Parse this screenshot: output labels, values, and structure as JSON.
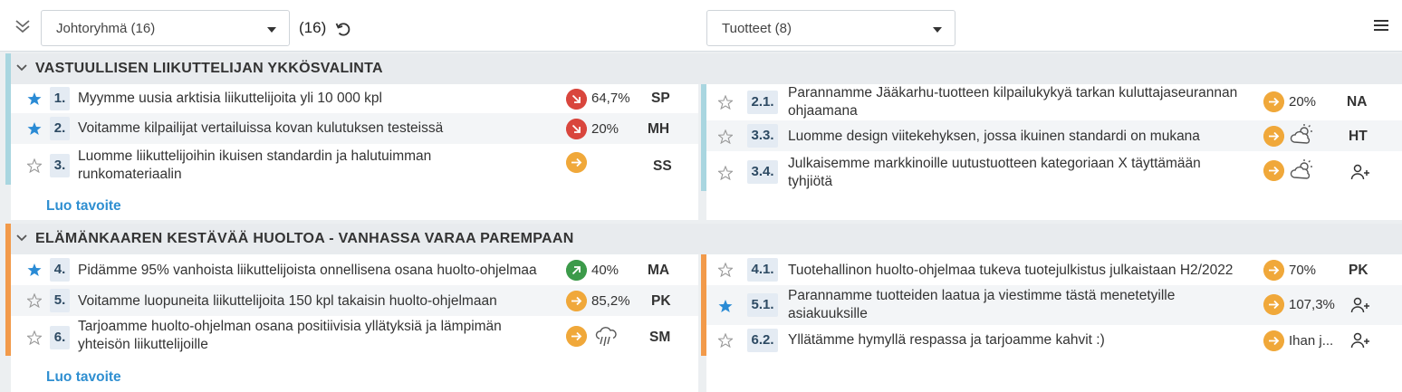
{
  "toolbar": {
    "left_dropdown": "Johtoryhmä (16)",
    "count": "(16)",
    "right_dropdown": "Tuotteet (8)"
  },
  "groups": [
    {
      "title": "VASTUULLISEN LIIKUTTELIJAN YKKÖSVALINTA",
      "color": "#a9d6e0",
      "add_goal": "Luo tavoite",
      "left_items": [
        {
          "num": "1.",
          "text_lines": [
            "Myymme uusia arktisia liikuttelijoita yli 10 000 kpl"
          ],
          "status": "down",
          "percent": "64,7%",
          "owner": "SP",
          "starred": true
        },
        {
          "num": "2.",
          "text_lines": [
            "Voitamme kilpailijat vertailuissa kovan kulutuksen testeissä"
          ],
          "status": "down",
          "percent": "20%",
          "owner": "MH",
          "starred": true
        },
        {
          "num": "3.",
          "text_lines": [
            "Luomme liikuttelijoihin ikuisen standardin ja halutuimman",
            "runkomateriaalin"
          ],
          "status": "right",
          "percent": "",
          "owner": "SS",
          "starred": false
        }
      ],
      "right_items": [
        {
          "num": "2.1.",
          "text_lines": [
            "Parannamme Jääkarhu-tuotteen kilpailukykyä tarkan kuluttajaseurannan",
            "ohjaamana"
          ],
          "status": "right",
          "percent": "20%",
          "owner": "NA",
          "starred": false
        },
        {
          "num": "3.3.",
          "text_lines": [
            "Luomme design viitekehyksen, jossa ikuinen standardi on mukana"
          ],
          "status": "right",
          "percent": "",
          "weather": "partly-cloudy-icon",
          "owner": "HT",
          "starred": false
        },
        {
          "num": "3.4.",
          "text_lines": [
            "Julkaisemme markkinoille uutustuotteen kategoriaan X täyttämään",
            "tyhjiötä"
          ],
          "status": "right",
          "percent": "",
          "weather": "partly-cloudy-icon",
          "owner": "",
          "owner_icon": "add-person-icon",
          "starred": false
        }
      ]
    },
    {
      "title": "ELÄMÄNKAAREN KESTÄVÄÄ HUOLTOA - VANHASSA VARAA PAREMPAAN",
      "color": "#f29a4a",
      "add_goal": "Luo tavoite",
      "left_items": [
        {
          "num": "4.",
          "text_lines": [
            "Pidämme 95% vanhoista liikuttelijoista onnellisena osana huolto-ohjelmaa"
          ],
          "status": "up",
          "percent": "40%",
          "owner": "MA",
          "starred": true
        },
        {
          "num": "5.",
          "text_lines": [
            "Voitamme luopuneita liikuttelijoita 150 kpl takaisin huolto-ohjelmaan"
          ],
          "status": "right",
          "percent": "85,2%",
          "owner": "PK",
          "starred": false
        },
        {
          "num": "6.",
          "text_lines": [
            "Tarjoamme huolto-ohjelman osana positiivisia yllätyksiä ja lämpimän",
            "yhteisön liikuttelijoille"
          ],
          "status": "right",
          "percent": "",
          "weather": "rain-icon",
          "owner": "SM",
          "starred": false
        }
      ],
      "right_items": [
        {
          "num": "4.1.",
          "text_lines": [
            "Tuotehallinon huolto-ohjelmaa tukeva tuotejulkistus julkaistaan H2/2022"
          ],
          "status": "right",
          "percent": "70%",
          "owner": "PK",
          "starred": false
        },
        {
          "num": "5.1.",
          "text_lines": [
            "Parannamme tuotteiden laatua ja viestimme tästä menetetyille",
            "asiakuuksille"
          ],
          "status": "right",
          "percent": "107,3%",
          "owner": "",
          "owner_icon": "add-person-icon",
          "starred": true
        },
        {
          "num": "6.2.",
          "text_lines": [
            "Yllätämme hymyllä respassa ja tarjoamme kahvit :)"
          ],
          "status": "right",
          "percent": "Ihan j...",
          "owner": "",
          "owner_icon": "add-person-icon",
          "starred": false
        }
      ]
    }
  ]
}
